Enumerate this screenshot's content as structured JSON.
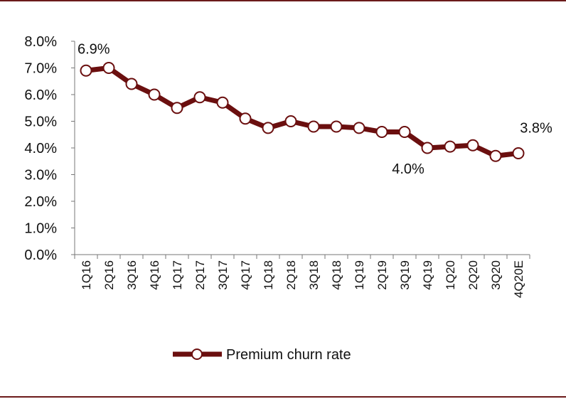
{
  "chart_data": {
    "type": "line",
    "categories": [
      "1Q16",
      "2Q16",
      "3Q16",
      "4Q16",
      "1Q17",
      "2Q17",
      "3Q17",
      "4Q17",
      "1Q18",
      "2Q18",
      "3Q18",
      "4Q18",
      "1Q19",
      "2Q19",
      "3Q19",
      "4Q19",
      "1Q20",
      "2Q20",
      "3Q20",
      "4Q20E"
    ],
    "series": [
      {
        "name": "Premium churn rate",
        "values": [
          6.9,
          7.0,
          6.4,
          6.0,
          5.5,
          5.9,
          5.7,
          5.1,
          4.75,
          5.0,
          4.8,
          4.8,
          4.75,
          4.6,
          4.6,
          4.0,
          4.05,
          4.1,
          3.7,
          3.8
        ],
        "color": "#6b0f0f"
      }
    ],
    "yticks": [
      "0.0%",
      "1.0%",
      "2.0%",
      "3.0%",
      "4.0%",
      "5.0%",
      "6.0%",
      "7.0%",
      "8.0%"
    ],
    "ylim": [
      0,
      8
    ],
    "data_labels": [
      {
        "index": 0,
        "text": "6.9%"
      },
      {
        "index": 15,
        "text": "4.0%"
      },
      {
        "index": 19,
        "text": "3.8%"
      }
    ],
    "legend": {
      "position": "bottom",
      "label": "Premium churn rate"
    },
    "grid": false
  }
}
